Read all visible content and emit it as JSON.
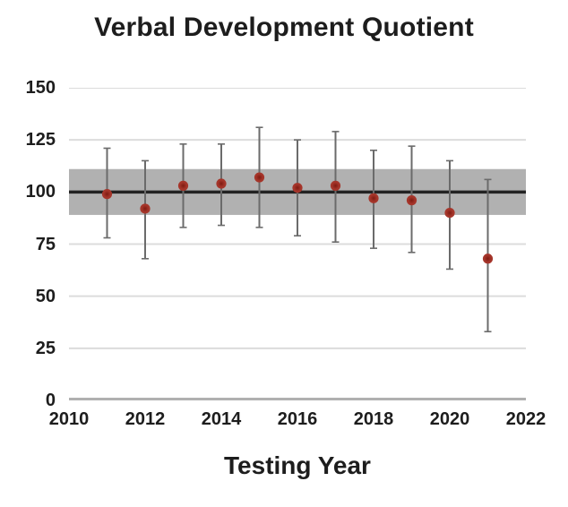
{
  "chart_data": {
    "type": "scatter",
    "title": "Verbal Development Quotient",
    "xlabel": "Testing Year",
    "ylabel": "",
    "xlim": [
      2010,
      2022
    ],
    "ylim": [
      0,
      150
    ],
    "x_ticks": [
      2010,
      2012,
      2014,
      2016,
      2018,
      2020,
      2022
    ],
    "y_ticks": [
      0,
      25,
      50,
      75,
      100,
      125,
      150
    ],
    "grid": "horizontal-only",
    "legend": "none",
    "reference_line_y": 100,
    "reference_band": {
      "low": 89,
      "high": 111
    },
    "series": [
      {
        "marker": "filled-circle-with-error-bars",
        "x": [
          2011,
          2012,
          2013,
          2014,
          2015,
          2016,
          2017,
          2018,
          2019,
          2020,
          2021
        ],
        "y": [
          99,
          92,
          103,
          104,
          107,
          102,
          103,
          97,
          96,
          90,
          68
        ],
        "error_low": [
          78,
          68,
          83,
          84,
          83,
          79,
          76,
          73,
          71,
          63,
          33
        ],
        "error_high": [
          121,
          115,
          123,
          123,
          131,
          125,
          129,
          120,
          122,
          115,
          106
        ]
      }
    ],
    "colors": {
      "point_edge": "#a5352a",
      "point_core": "#7f1b12",
      "error_bar": "#6b6b6b",
      "reference_line": "#232323",
      "reference_band": "#b1b1b1",
      "gridline": "#dcdcdc",
      "axis_line": "#b0b0b0",
      "text": "#1d1d1d",
      "background": "#ffffff"
    }
  }
}
